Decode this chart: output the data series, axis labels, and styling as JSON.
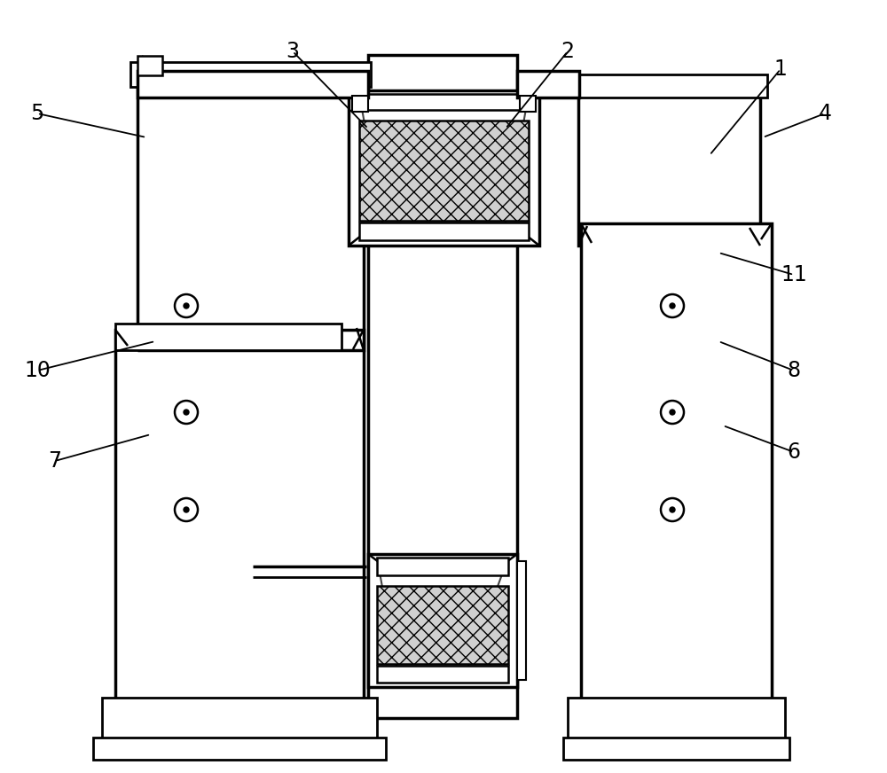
{
  "background_color": "#ffffff",
  "figsize": [
    10.0,
    8.72
  ],
  "dpi": 100
}
